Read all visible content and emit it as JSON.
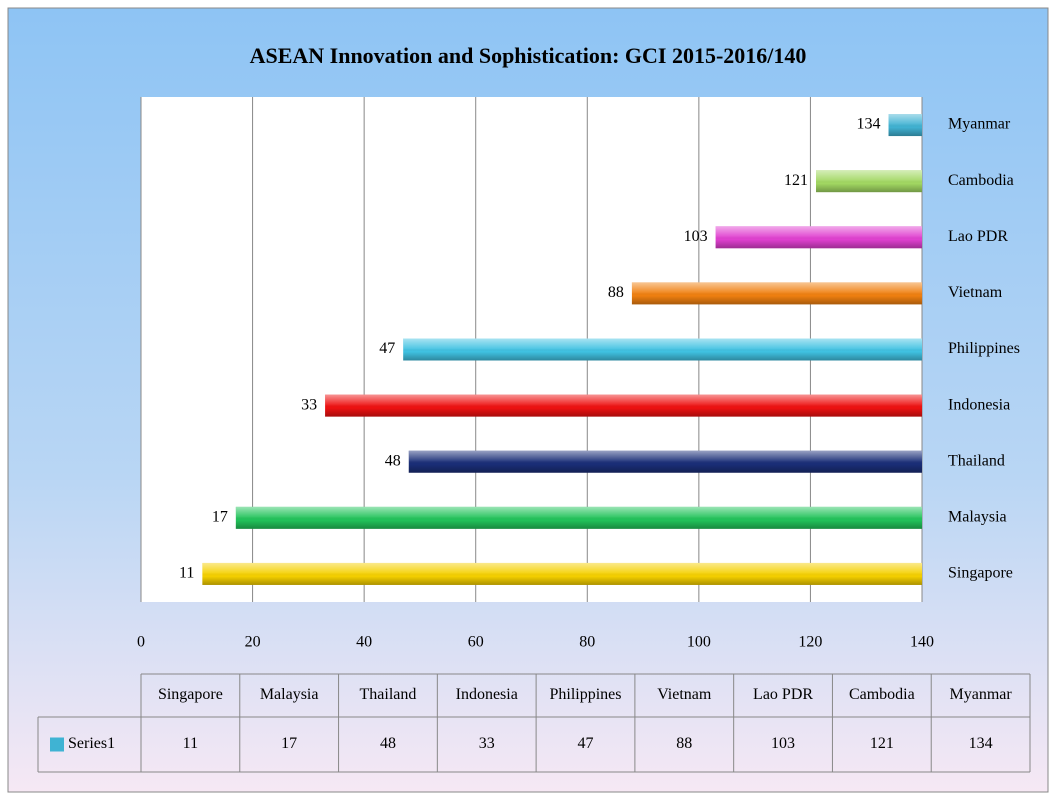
{
  "chart_data": {
    "type": "bar",
    "orientation": "horizontal",
    "title": "ASEAN Innovation and Sophistication: GCI 2015-2016/140",
    "categories": [
      "Singapore",
      "Malaysia",
      "Thailand",
      "Indonesia",
      "Philippines",
      "Vietnam",
      "Lao PDR",
      "Cambodia",
      "Myanmar"
    ],
    "series": [
      {
        "name": "Series1",
        "color": "#3fb3d3",
        "values": [
          11,
          17,
          48,
          33,
          47,
          88,
          103,
          121,
          134
        ],
        "colors": [
          "#f5d000",
          "#22c35a",
          "#1a2e78",
          "#ee1111",
          "#40c2e2",
          "#f08010",
          "#e040d0",
          "#a2d862",
          "#40b2d2"
        ]
      }
    ],
    "xlim": [
      0,
      140
    ],
    "xticks": [
      0,
      20,
      40,
      60,
      80,
      100,
      120,
      140
    ],
    "grid": true,
    "value_label_color": "#e00000",
    "data_table": true
  }
}
